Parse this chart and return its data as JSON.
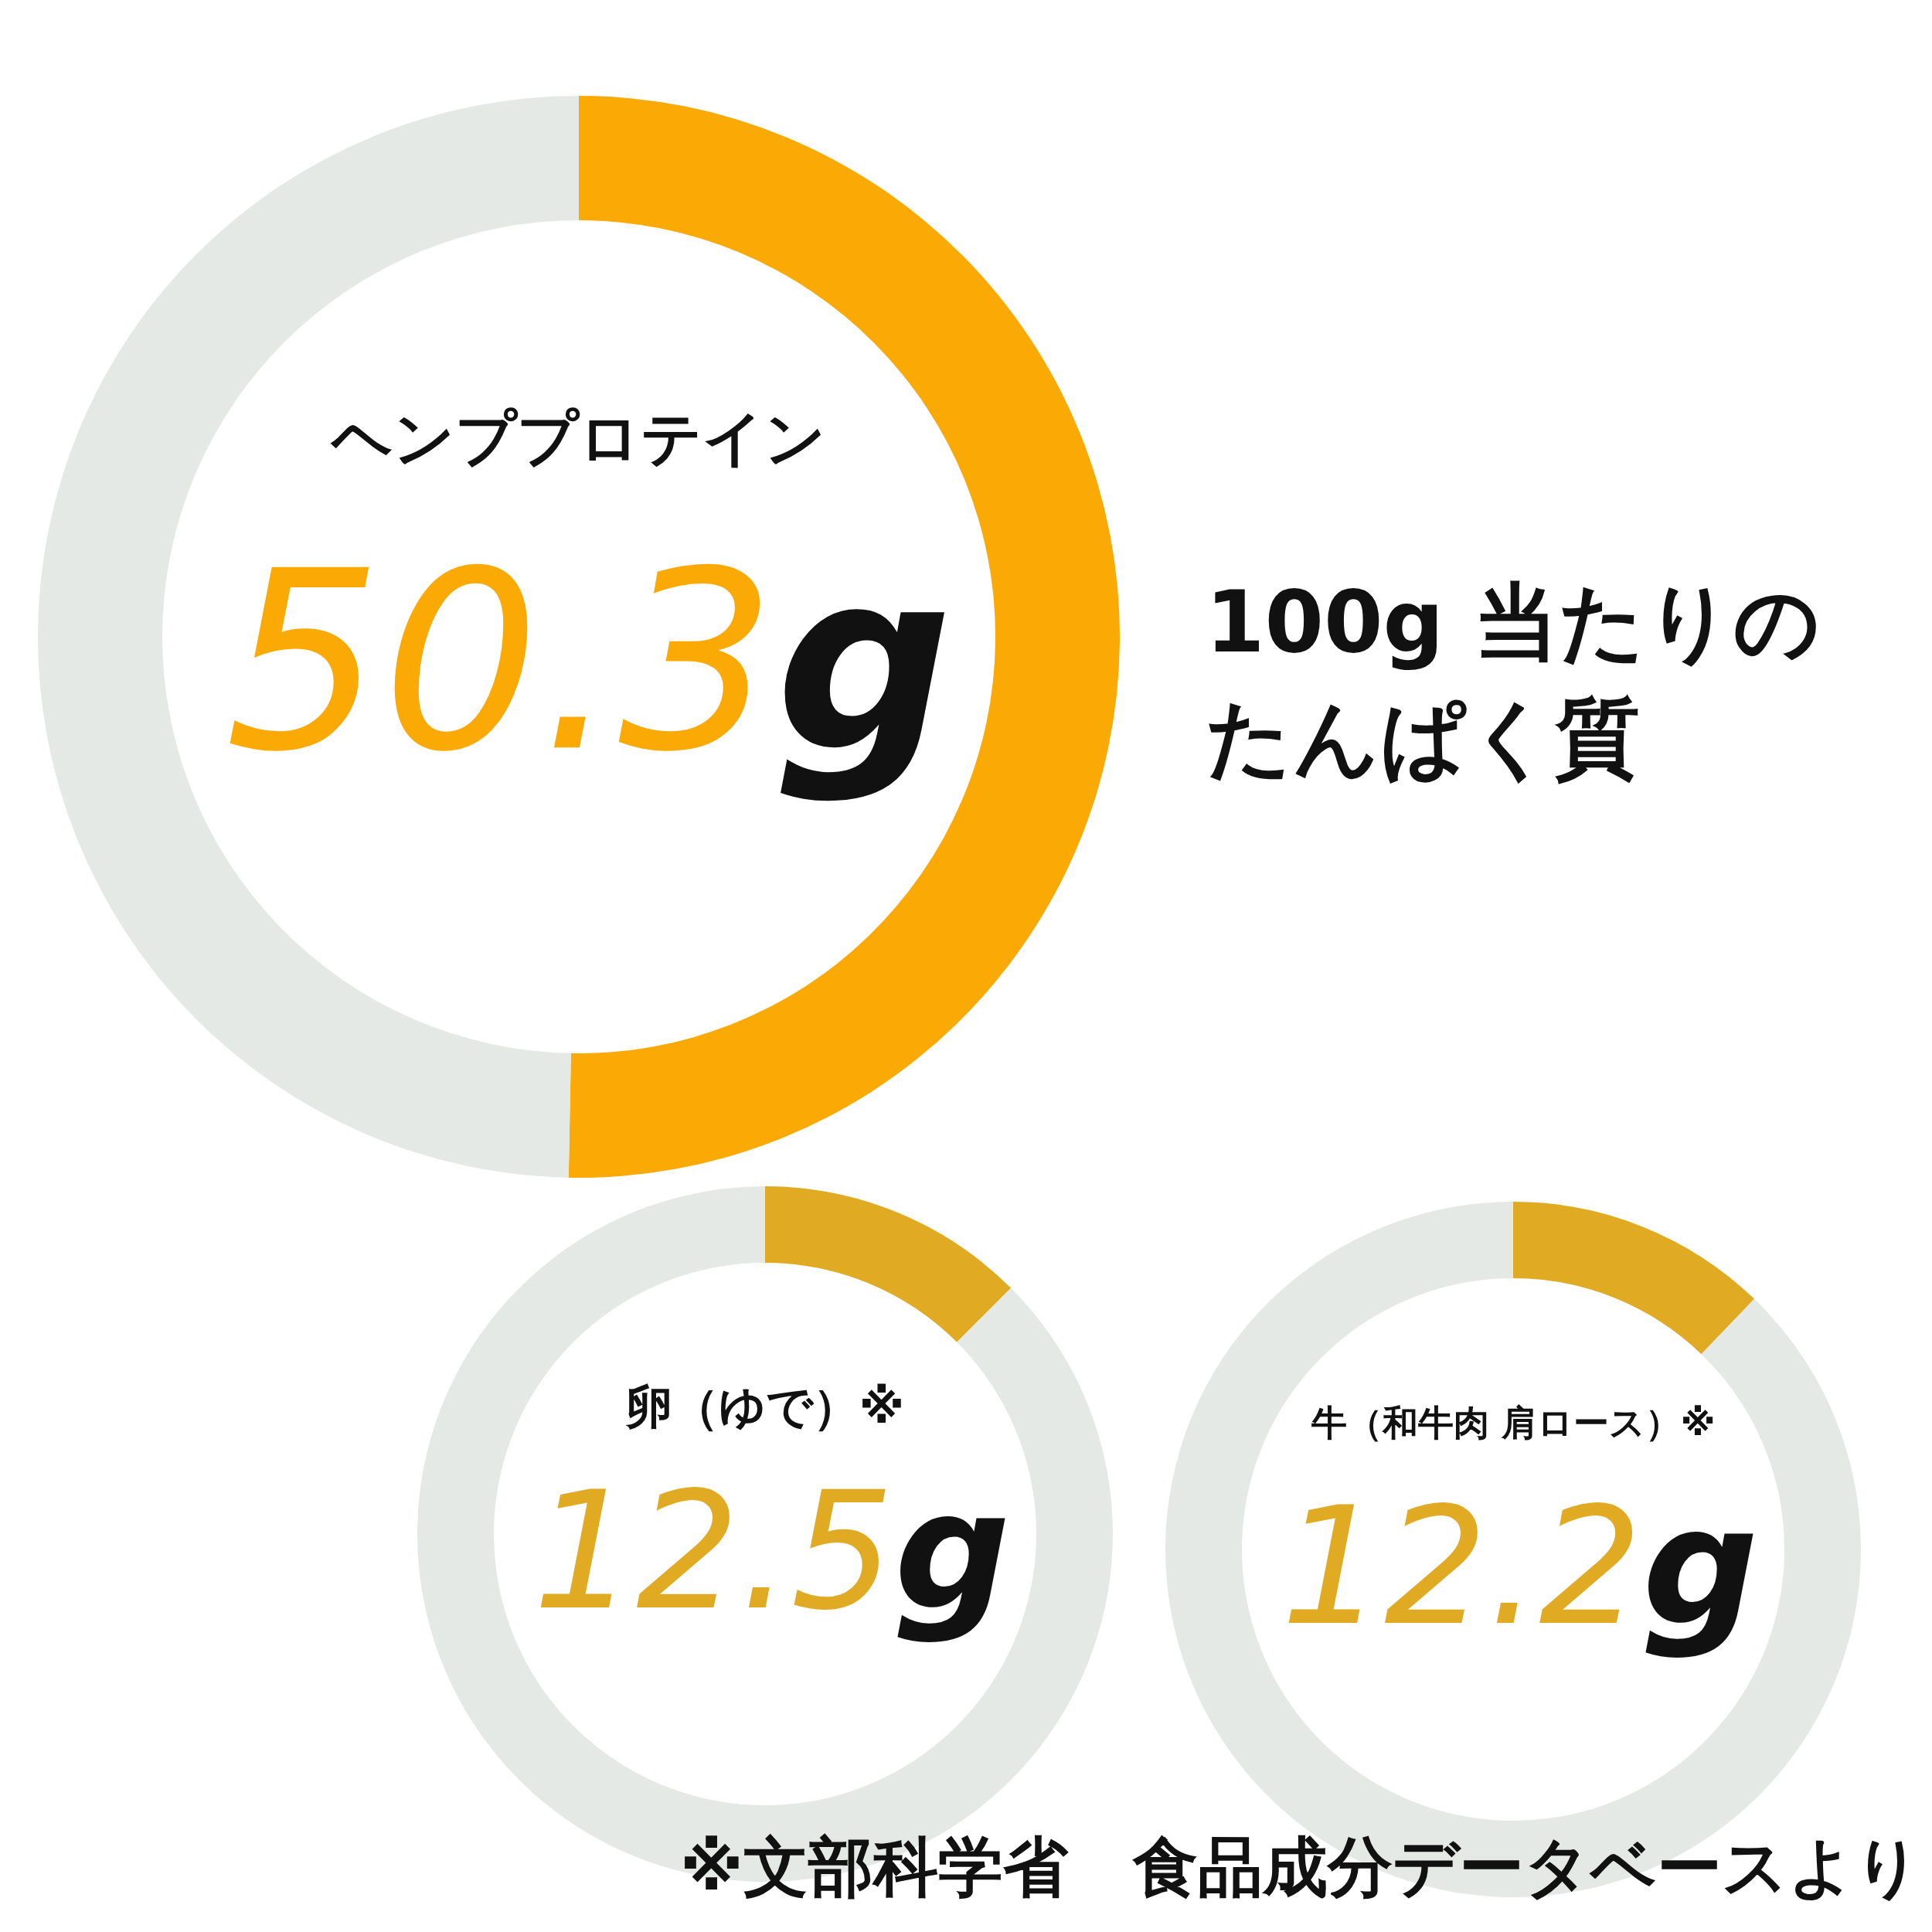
{
  "chart_data": [
    {
      "type": "donut",
      "title": "100g 当たりのたんぱく質",
      "categories": [
        "ヘンププロテイン",
        null
      ],
      "values": [
        50.3,
        49.7
      ],
      "colors": [
        "#fbaa05",
        "#e4e9e6"
      ],
      "value_labels": [
        "50.3g",
        null
      ]
    },
    {
      "type": "donut",
      "categories": [
        "卵（ゆで）※",
        null
      ],
      "values": [
        12.5,
        87.5
      ],
      "colors": [
        "#e0aa22",
        "#e4e9e6"
      ],
      "value_labels": [
        "12.5g",
        null
      ]
    },
    {
      "type": "donut",
      "categories": [
        "牛（和牛肉 肩ロース）※",
        null
      ],
      "values": [
        12.2,
        87.8
      ],
      "colors": [
        "#e0aa22",
        "#e4e9e6"
      ],
      "value_labels": [
        "12.2g",
        null
      ],
      "annotations": [
        "※文部科学省　食品成分データベースより"
      ]
    }
  ]
}
